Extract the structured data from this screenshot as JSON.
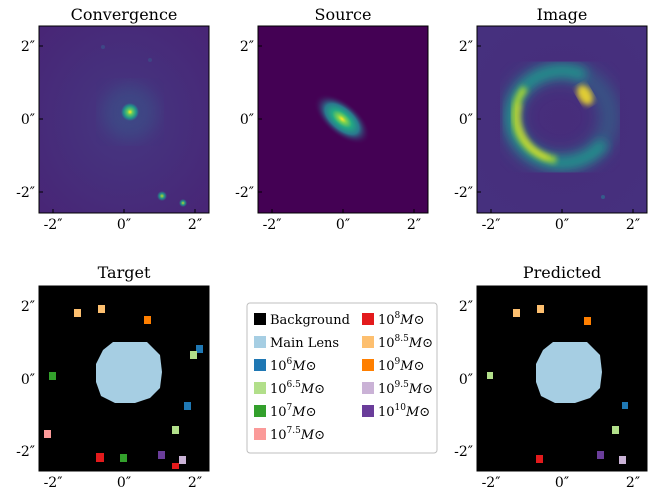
{
  "panels": {
    "convergence": {
      "title": "Convergence"
    },
    "source": {
      "title": "Source"
    },
    "image": {
      "title": "Image"
    },
    "target": {
      "title": "Target"
    },
    "predicted": {
      "title": "Predicted"
    }
  },
  "ticks": {
    "y": [
      "2″",
      "0″",
      "-2″"
    ],
    "x": [
      "-2″",
      "0″",
      "2″"
    ]
  },
  "legend": {
    "items": [
      {
        "label": "Background",
        "sup": "",
        "suffix": "",
        "color": "#000000"
      },
      {
        "label": "Main Lens",
        "sup": "",
        "suffix": "",
        "color": "#a6cee3"
      },
      {
        "label": "10",
        "sup": "6",
        "suffix": "M⊙",
        "color": "#1f78b4"
      },
      {
        "label": "10",
        "sup": "6.5",
        "suffix": "M⊙",
        "color": "#b2df8a"
      },
      {
        "label": "10",
        "sup": "7",
        "suffix": "M⊙",
        "color": "#33a02c"
      },
      {
        "label": "10",
        "sup": "7.5",
        "suffix": "M⊙",
        "color": "#fb9a99"
      },
      {
        "label": "10",
        "sup": "8",
        "suffix": "M⊙",
        "color": "#e31a1c"
      },
      {
        "label": "10",
        "sup": "8.5",
        "suffix": "M⊙",
        "color": "#fdbf6f"
      },
      {
        "label": "10",
        "sup": "9",
        "suffix": "M⊙",
        "color": "#ff7f00"
      },
      {
        "label": "10",
        "sup": "9.5",
        "suffix": "M⊙",
        "color": "#cab2d6"
      },
      {
        "label": "10",
        "sup": "10",
        "suffix": "M⊙",
        "color": "#6a3d9a"
      }
    ]
  },
  "colors": {
    "viridis_bg": "#46307e",
    "viridis_dark": "#440154",
    "main_lens": "#a6cee3"
  }
}
